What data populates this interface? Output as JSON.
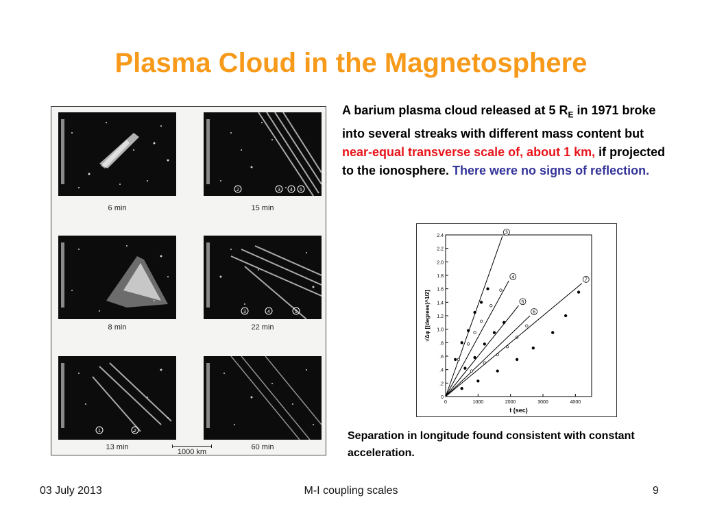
{
  "slide": {
    "title": "Plasma Cloud in the Magnetosphere",
    "title_color": "#f79a1a",
    "text_colors": {
      "highlight_red": "#e8141a",
      "highlight_blue": "#33339a"
    }
  },
  "figure": {
    "panels": [
      {
        "time": "6 min",
        "markers": []
      },
      {
        "time": "15 min",
        "markers": [
          "2",
          "3",
          "4",
          "5"
        ]
      },
      {
        "time": "8 min",
        "markers": []
      },
      {
        "time": "22 min",
        "markers": [
          "3",
          "4",
          "5"
        ]
      },
      {
        "time": "13 min",
        "markers": [
          "1",
          "2"
        ]
      },
      {
        "time": "60 min",
        "markers": []
      }
    ],
    "scale_label": "1000 km"
  },
  "description": {
    "part1": "A barium plasma cloud released at 5 R",
    "subscript": "E",
    "part2": " in 1971 broke into several streaks with different mass content but ",
    "red_text": "near-equal transverse scale of, about 1 km,",
    "part3": " if projected to the ionosphere. ",
    "blue_text": "There were no signs of reflection."
  },
  "chart_data": {
    "type": "scatter",
    "xlabel": "t (sec)",
    "ylabel": "√Δφ  [(degrees)^1/2]",
    "xlim": [
      0,
      4500
    ],
    "ylim": [
      0,
      2.4
    ],
    "x_ticks": [
      "0",
      "1000",
      "2000",
      "3000",
      "4000"
    ],
    "y_ticks": [
      "0",
      ".2",
      ".4",
      ".6",
      ".8",
      "1.0",
      "1.2",
      "1.4",
      "1.6",
      "1.8",
      "2.0",
      "2.2",
      "2.4"
    ],
    "series": [
      {
        "name": "3",
        "points": [
          [
            300,
            0.55
          ],
          [
            500,
            0.8
          ],
          [
            700,
            0.98
          ],
          [
            900,
            1.25
          ],
          [
            1100,
            1.4
          ],
          [
            1300,
            1.6
          ]
        ],
        "fit_end": [
          1750,
          2.38
        ]
      },
      {
        "name": "4",
        "points": [
          [
            400,
            0.55
          ],
          [
            700,
            0.78
          ],
          [
            900,
            0.95
          ],
          [
            1100,
            1.12
          ],
          [
            1400,
            1.35
          ],
          [
            1700,
            1.58
          ]
        ],
        "fit_end": [
          1950,
          1.72
        ]
      },
      {
        "name": "5",
        "points": [
          [
            600,
            0.42
          ],
          [
            900,
            0.58
          ],
          [
            1200,
            0.78
          ],
          [
            1500,
            0.95
          ],
          [
            1800,
            1.1
          ]
        ],
        "fit_end": [
          2250,
          1.35
        ]
      },
      {
        "name": "6",
        "points": [
          [
            800,
            0.38
          ],
          [
            1200,
            0.5
          ],
          [
            1600,
            0.62
          ],
          [
            1900,
            0.74
          ],
          [
            2200,
            0.88
          ],
          [
            2500,
            1.05
          ]
        ],
        "fit_end": [
          2600,
          1.2
        ]
      },
      {
        "name": "7",
        "points": [
          [
            500,
            0.12
          ],
          [
            1000,
            0.23
          ],
          [
            1600,
            0.38
          ],
          [
            2200,
            0.55
          ],
          [
            2700,
            0.72
          ],
          [
            3300,
            0.95
          ],
          [
            3700,
            1.2
          ],
          [
            4100,
            1.55
          ]
        ],
        "fit_end": [
          4200,
          1.68
        ]
      }
    ]
  },
  "caption": "Separation in longitude found consistent with constant acceleration.",
  "footer": {
    "date": "03 July 2013",
    "center": "M-I coupling scales",
    "page": "9"
  }
}
